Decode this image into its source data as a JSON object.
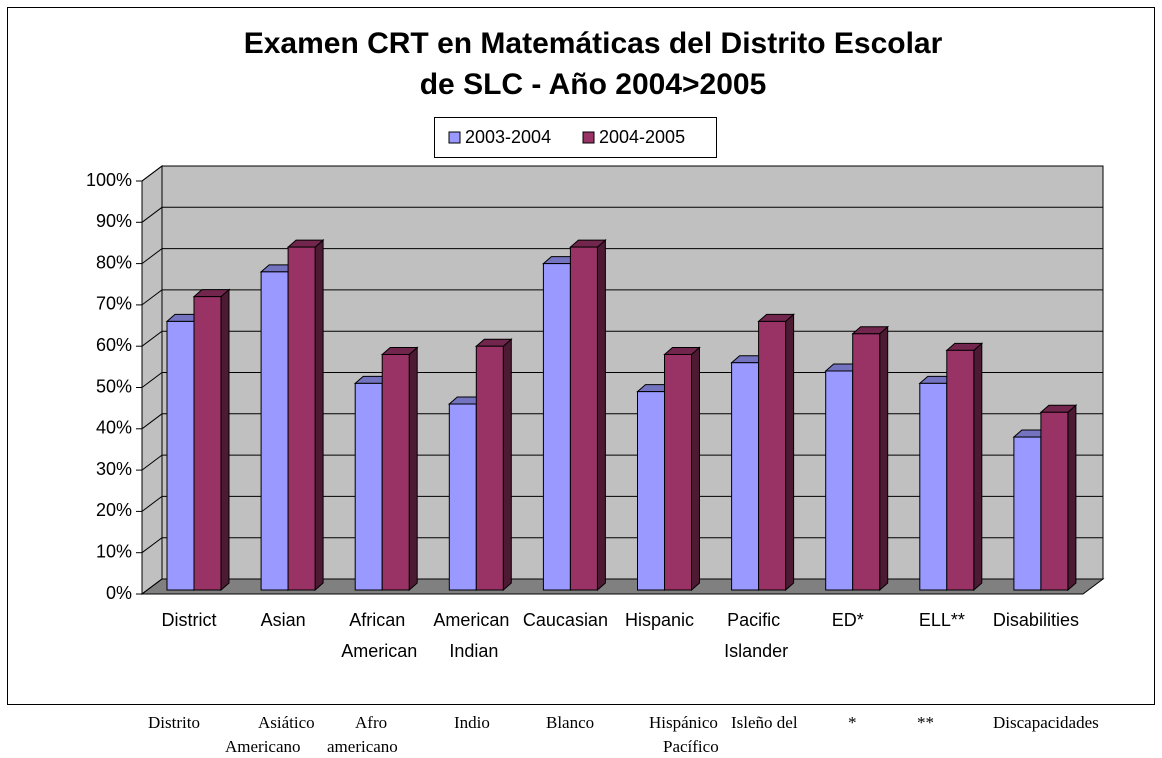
{
  "chart_data": {
    "type": "bar3d",
    "title": [
      "Examen CRT en Matemáticas del Distrito Escolar",
      "de SLC - Año 2004>2005"
    ],
    "categories": [
      "District",
      "Asian",
      "African American",
      "American Indian",
      "Caucasian",
      "Hispanic",
      "Pacific Islander",
      "ED*",
      "ELL**",
      "Disabilities"
    ],
    "series": [
      {
        "name": "2003-2004",
        "color": "#9999ff",
        "values": [
          66,
          78,
          51,
          46,
          80,
          49,
          56,
          54,
          51,
          38
        ]
      },
      {
        "name": "2004-2005",
        "color": "#993366",
        "values": [
          72,
          84,
          58,
          60,
          84,
          58,
          66,
          63,
          59,
          44
        ]
      }
    ],
    "ylim": [
      0,
      100
    ],
    "yticks": [
      {
        "value": 0,
        "label": "0%"
      },
      {
        "value": 10,
        "label": "10%"
      },
      {
        "value": 20,
        "label": "20%"
      },
      {
        "value": 30,
        "label": "30%"
      },
      {
        "value": 40,
        "label": "40%"
      },
      {
        "value": 50,
        "label": "50%"
      },
      {
        "value": 60,
        "label": "60%"
      },
      {
        "value": 70,
        "label": "70%"
      },
      {
        "value": 80,
        "label": "80%"
      },
      {
        "value": 90,
        "label": "90%"
      },
      {
        "value": 100,
        "label": "100%"
      }
    ],
    "grid": true,
    "legend": "top"
  },
  "footnote_lines": [
    [
      "Distrito",
      "Asiático",
      "Afro",
      "Indio",
      "Blanco",
      "Hispánico",
      "Isleño del",
      "*",
      "**",
      "Discapacidades"
    ],
    [
      "Americano",
      "americano",
      "Pacífico"
    ]
  ]
}
